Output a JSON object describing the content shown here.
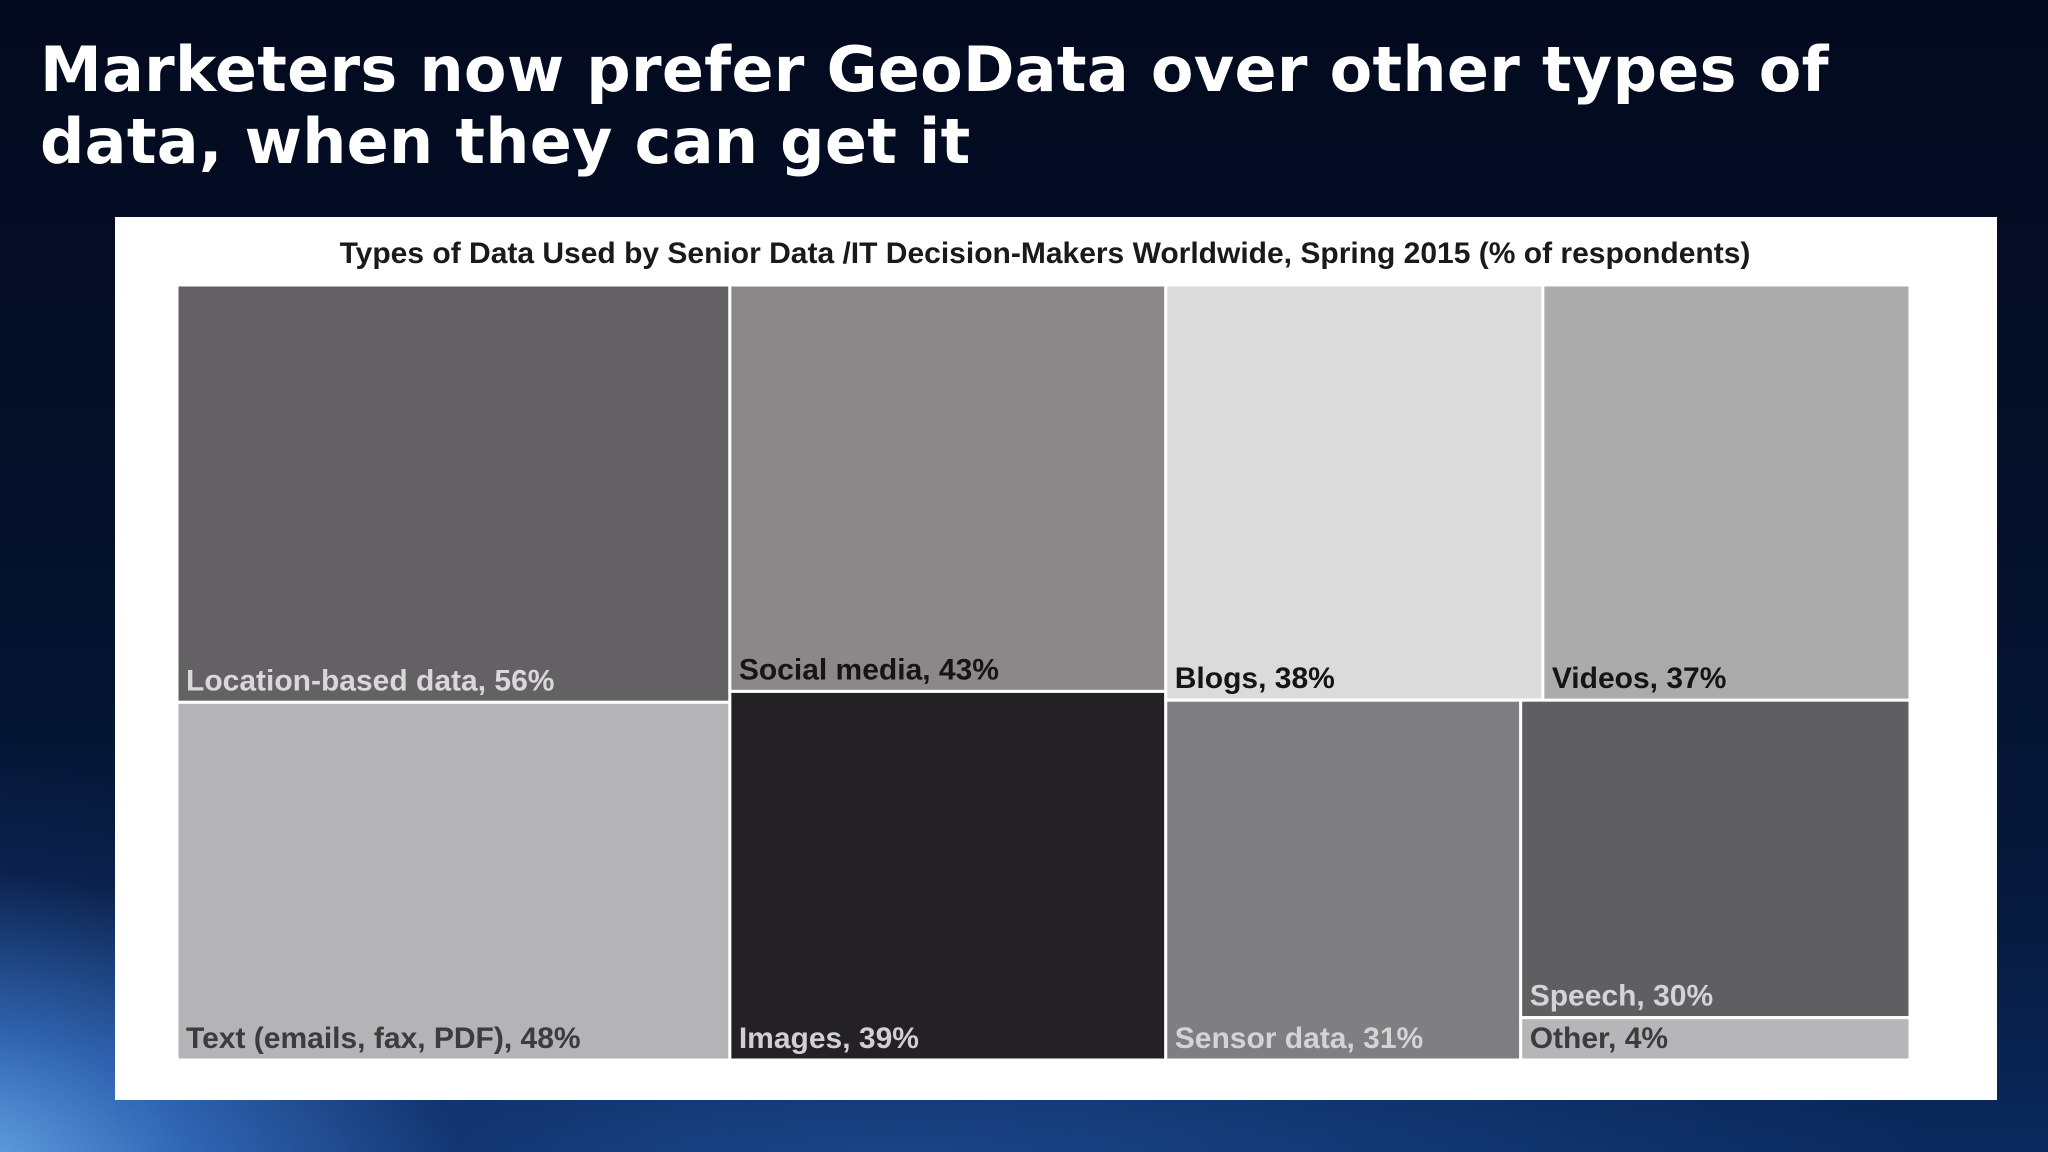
{
  "slide": {
    "title": "Marketers now prefer GeoData over other types of data, when they can get it"
  },
  "chart_data": {
    "type": "treemap",
    "title": "Types of Data Used by Senior Data /IT Decision-Makers Worldwide, Spring 2015 (% of respondents)",
    "unit": "%",
    "items": [
      {
        "label": "Location-based data, 56%",
        "value": 56,
        "color": "#636163",
        "text_color": "#d8d8d8"
      },
      {
        "label": "Social media, 43%",
        "value": 43,
        "color": "#8a8889",
        "text_color": "#151515"
      },
      {
        "label": "Blogs, 38%",
        "value": 38,
        "color": "#dcdbdc",
        "text_color": "#151515"
      },
      {
        "label": "Videos, 37%",
        "value": 37,
        "color": "#acabac",
        "text_color": "#151515"
      },
      {
        "label": "Text (emails, fax, PDF), 48%",
        "value": 48,
        "color": "#b4b3b5",
        "text_color": "#3c3c3c"
      },
      {
        "label": "Images, 39%",
        "value": 39,
        "color": "#232124",
        "text_color": "#d0d0d0"
      },
      {
        "label": "Sensor data, 31%",
        "value": 31,
        "color": "#7f7e80",
        "text_color": "#d4d4d4"
      },
      {
        "label": "Speech, 30%",
        "value": 30,
        "color": "#5f5e60",
        "text_color": "#d4d4d4"
      },
      {
        "label": "Other, 4%",
        "value": 4,
        "color": "#b6b5b7",
        "text_color": "#3c3c3c"
      }
    ]
  }
}
